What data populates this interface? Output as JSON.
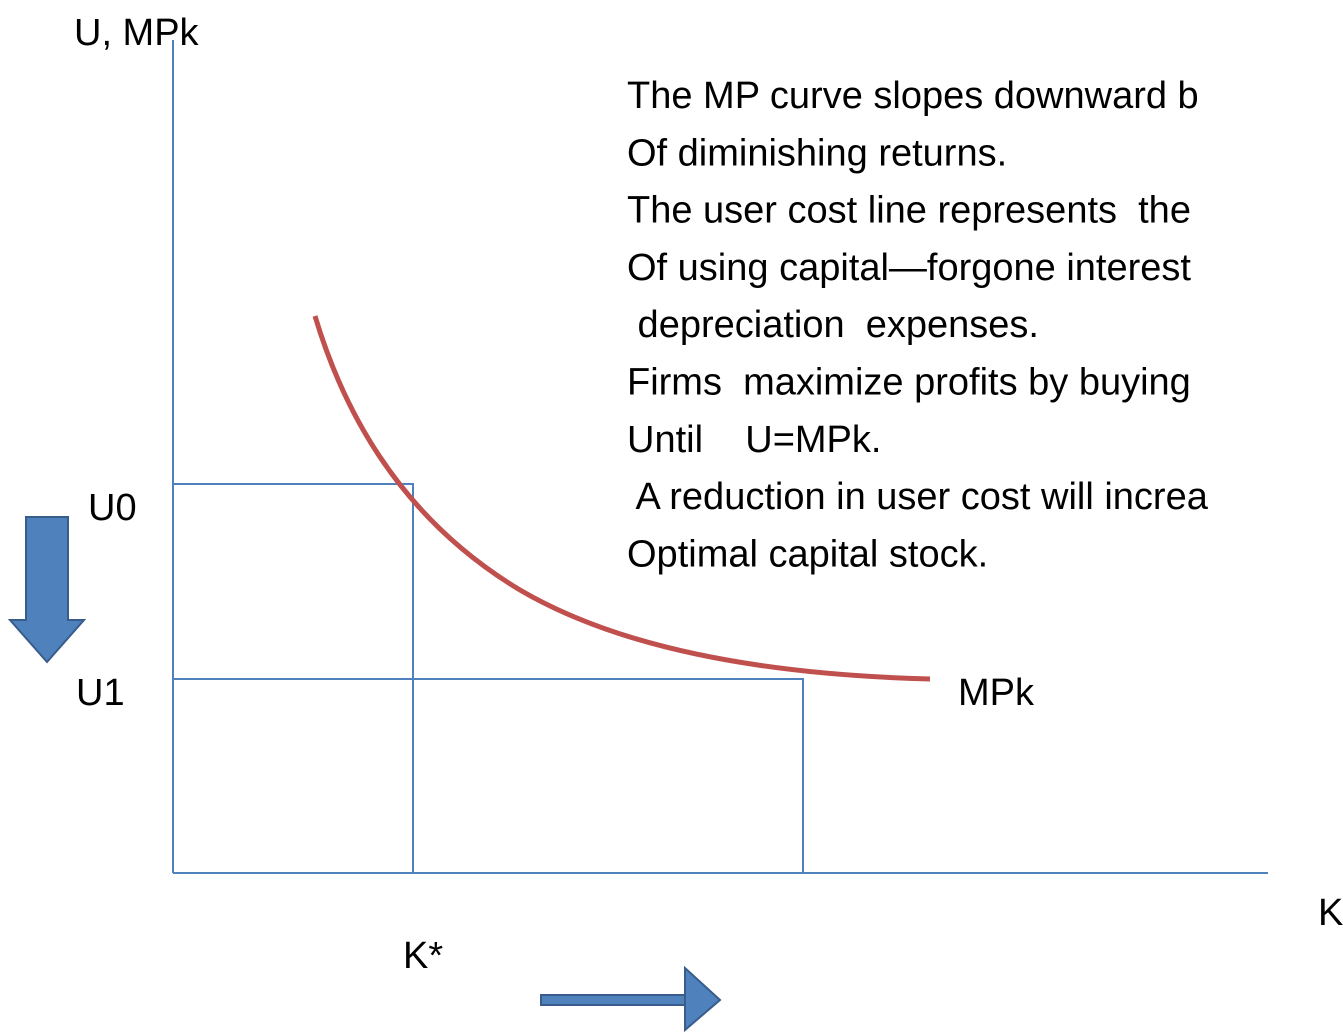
{
  "labels": {
    "y_axis": "U, MPk",
    "x_axis": "K",
    "u0": "U0",
    "u1": "U1",
    "curve": "MPk",
    "k_star": "K*"
  },
  "notes": [
    "The MP curve slopes downward b",
    "Of diminishing returns.",
    "The user cost line represents  the",
    "Of using capital—forgone interest",
    " depreciation  expenses.",
    "Firms  maximize profits by buying",
    "Until    U=MPk.",
    " A reduction in user cost will increa",
    "Optimal capital stock."
  ]
}
